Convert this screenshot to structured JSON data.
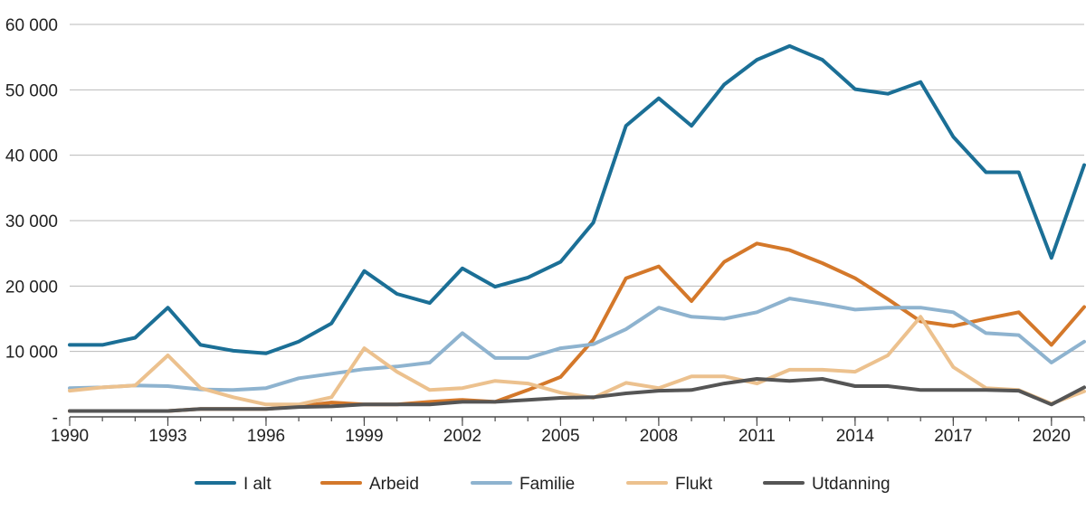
{
  "chart_data": {
    "type": "line",
    "x": [
      1990,
      1991,
      1992,
      1993,
      1994,
      1995,
      1996,
      1997,
      1998,
      1999,
      2000,
      2001,
      2002,
      2003,
      2004,
      2005,
      2006,
      2007,
      2008,
      2009,
      2010,
      2011,
      2012,
      2013,
      2014,
      2015,
      2016,
      2017,
      2018,
      2019,
      2020,
      2021
    ],
    "xticks": [
      1990,
      1993,
      1996,
      1999,
      2002,
      2005,
      2008,
      2011,
      2014,
      2017,
      2020
    ],
    "xtick_labels": [
      "1990",
      "1993",
      "1996",
      "1999",
      "2002",
      "2005",
      "2008",
      "2011",
      "2014",
      "2017",
      "2020"
    ],
    "yticks": [
      0,
      10000,
      20000,
      30000,
      40000,
      50000,
      60000
    ],
    "ytick_labels": [
      "-",
      "10 000",
      "20 000",
      "30 000",
      "40 000",
      "50 000",
      "60 000"
    ],
    "ylim": [
      0,
      60000
    ],
    "xlim": [
      1990,
      2021
    ],
    "grid": true,
    "legend_position": "bottom",
    "title": "",
    "xlabel": "",
    "ylabel": "",
    "series": [
      {
        "name": "I alt",
        "color": "#1b6f96",
        "values": [
          11000,
          11000,
          12100,
          16700,
          11000,
          10100,
          9700,
          11500,
          14300,
          22300,
          18800,
          17400,
          22700,
          19900,
          21300,
          23700,
          29700,
          44500,
          48700,
          44500,
          50800,
          54600,
          56700,
          54600,
          50100,
          49400,
          51200,
          42800,
          37400,
          37400,
          24300,
          38500
        ]
      },
      {
        "name": "Arbeid",
        "color": "#d4782a",
        "values": [
          900,
          900,
          900,
          900,
          1200,
          1200,
          1200,
          1600,
          2200,
          1900,
          1900,
          2300,
          2600,
          2300,
          4100,
          6100,
          11800,
          21200,
          23000,
          17700,
          23700,
          26500,
          25500,
          23500,
          21200,
          18000,
          14600,
          13900,
          15000,
          16000,
          11000,
          16800
        ]
      },
      {
        "name": "Familie",
        "color": "#8eb3cf",
        "values": [
          4400,
          4500,
          4800,
          4700,
          4200,
          4100,
          4400,
          5900,
          6600,
          7300,
          7700,
          8300,
          12800,
          9000,
          9000,
          10500,
          11100,
          13400,
          16700,
          15300,
          15000,
          16000,
          18100,
          17300,
          16400,
          16700,
          16700,
          16000,
          12800,
          12500,
          8300,
          11500
        ]
      },
      {
        "name": "Flukt",
        "color": "#ecc18e",
        "values": [
          4000,
          4500,
          4800,
          9400,
          4400,
          3000,
          1900,
          1900,
          3000,
          10500,
          6900,
          4100,
          4400,
          5500,
          5100,
          3700,
          2900,
          5200,
          4400,
          6200,
          6200,
          5100,
          7200,
          7200,
          6900,
          9400,
          15300,
          7600,
          4400,
          4100,
          2000,
          3900
        ]
      },
      {
        "name": "Utdanning",
        "color": "#555555",
        "values": [
          900,
          900,
          900,
          900,
          1200,
          1200,
          1200,
          1500,
          1600,
          1900,
          1900,
          1900,
          2300,
          2300,
          2600,
          2900,
          3000,
          3600,
          4000,
          4100,
          5100,
          5800,
          5500,
          5800,
          4700,
          4700,
          4100,
          4100,
          4100,
          4000,
          1900,
          4500
        ]
      }
    ]
  }
}
